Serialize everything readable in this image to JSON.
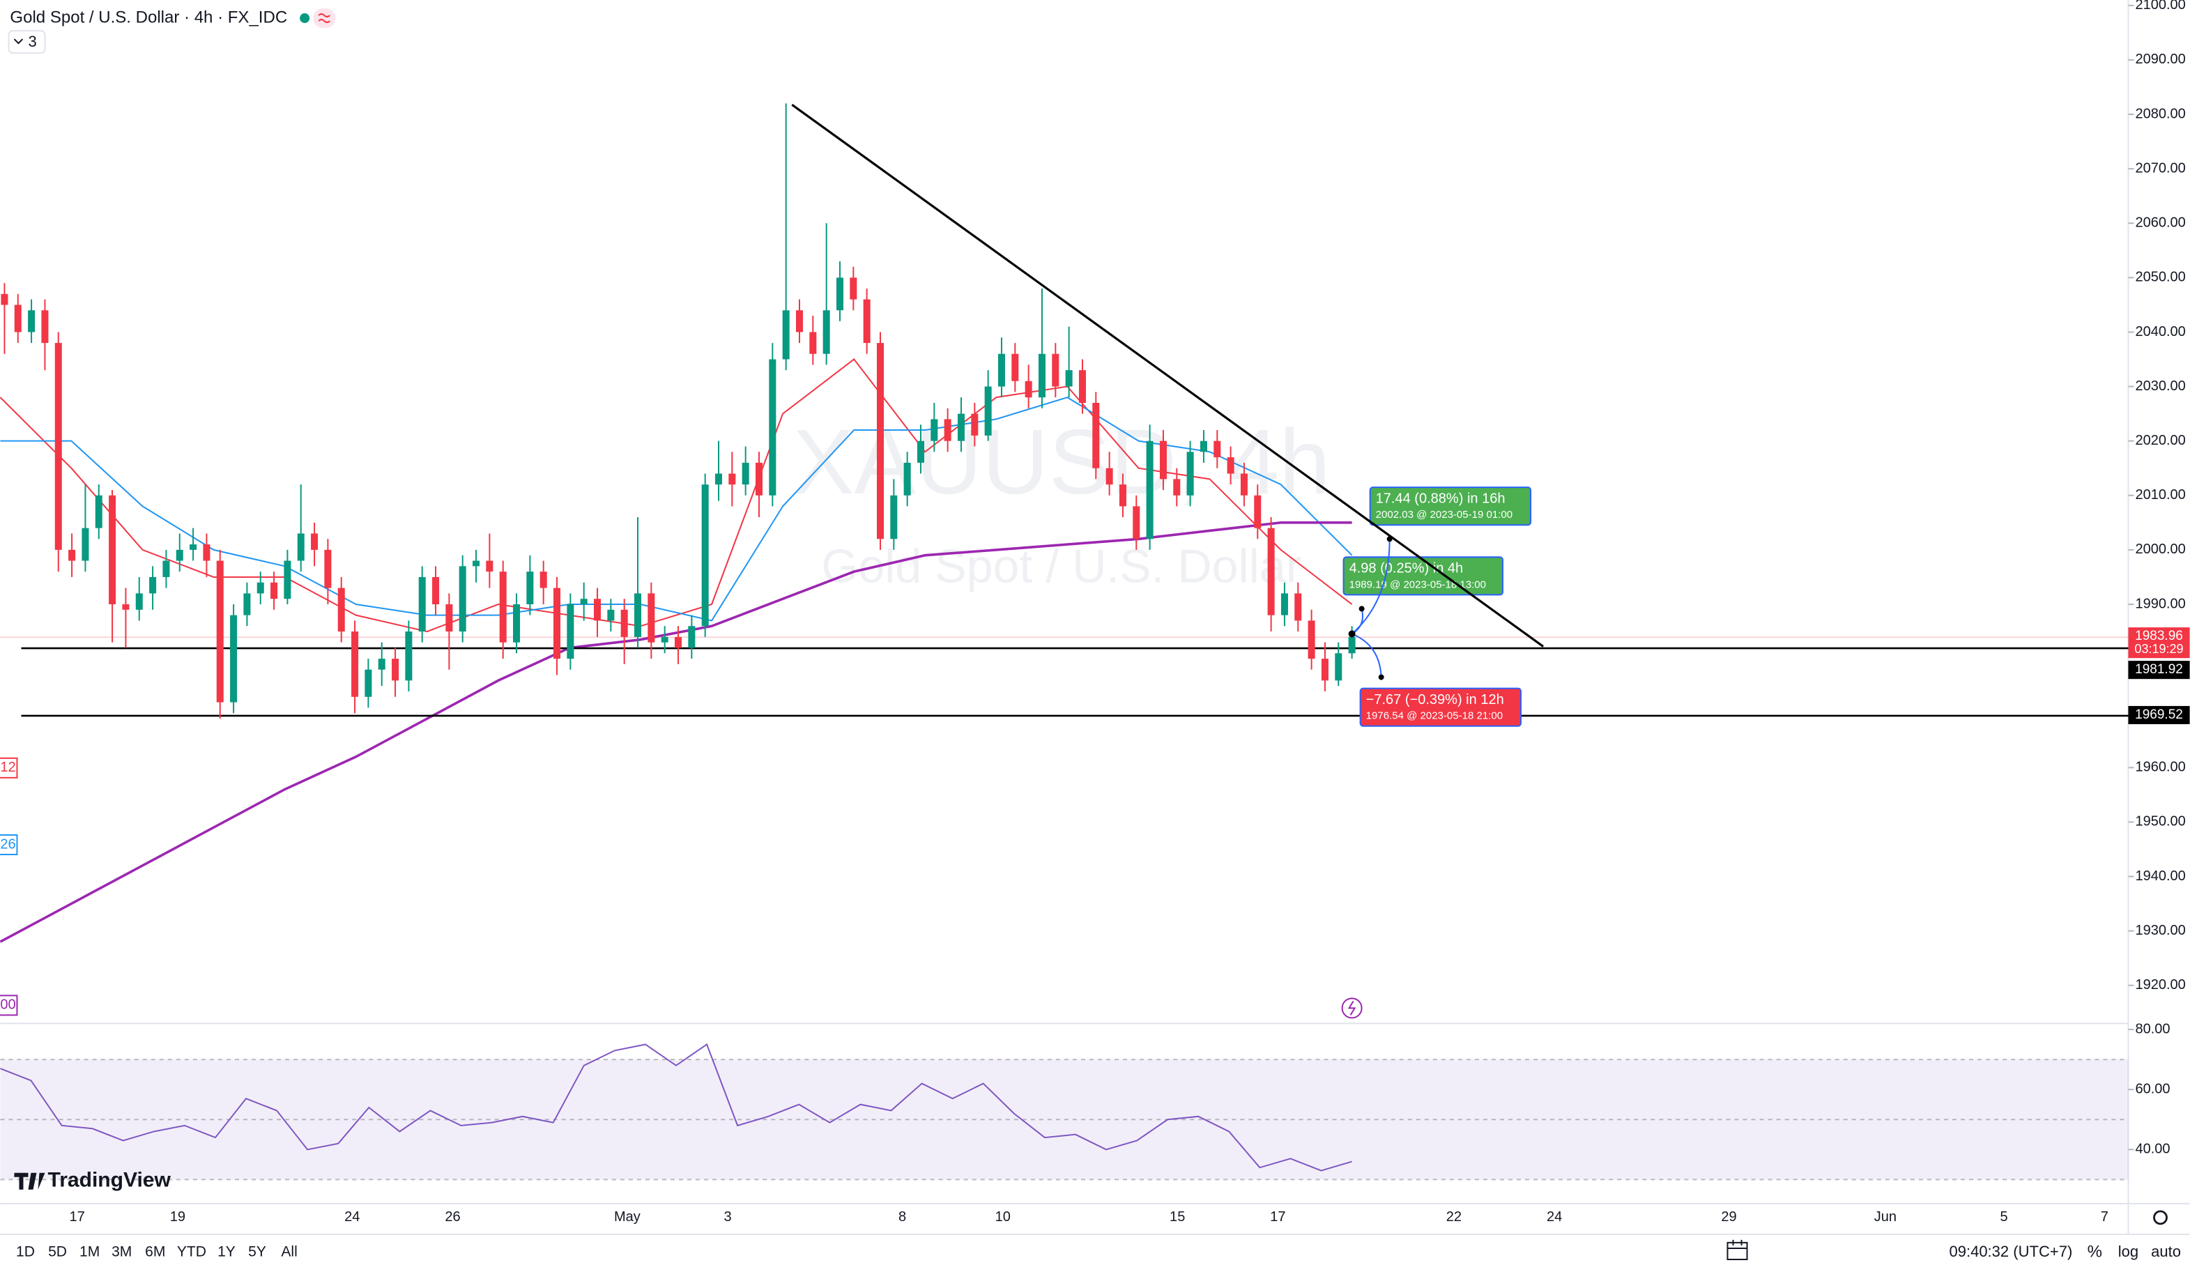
{
  "chart_data": {
    "type": "candlestick",
    "title": "Gold Spot / U.S. Dollar · 4h · FX_IDC",
    "indicators_badge": "3",
    "watermark_symbol": "XAUUSD, 4h",
    "watermark_name": "Gold Spot / U.S. Dollar",
    "colors": {
      "up": "#089981",
      "down": "#f23645"
    },
    "ohlc": [
      [
        2047,
        2049,
        2036,
        2045
      ],
      [
        2045,
        2047,
        2038,
        2040
      ],
      [
        2040,
        2046,
        2038,
        2044
      ],
      [
        2044,
        2046,
        2033,
        2038
      ],
      [
        2038,
        2040,
        1996,
        2000
      ],
      [
        2000,
        2003,
        1995,
        1998
      ],
      [
        1998,
        2012,
        1996,
        2004
      ],
      [
        2004,
        2012,
        2002,
        2010
      ],
      [
        2010,
        2011,
        1983,
        1990
      ],
      [
        1990,
        1993,
        1982,
        1989
      ],
      [
        1989,
        1995,
        1987,
        1992
      ],
      [
        1992,
        1997,
        1989,
        1995
      ],
      [
        1995,
        2000,
        1993,
        1998
      ],
      [
        1998,
        2003,
        1996,
        2000
      ],
      [
        2000,
        2004,
        1998,
        2001
      ],
      [
        2001,
        2003,
        1995,
        1998
      ],
      [
        1998,
        2000,
        1969,
        1972
      ],
      [
        1972,
        1990,
        1970,
        1988
      ],
      [
        1988,
        1994,
        1986,
        1992
      ],
      [
        1992,
        1996,
        1990,
        1994
      ],
      [
        1994,
        1996,
        1989,
        1991
      ],
      [
        1991,
        2000,
        1990,
        1998
      ],
      [
        1998,
        2012,
        1996,
        2003
      ],
      [
        2003,
        2005,
        1997,
        2000
      ],
      [
        2000,
        2002,
        1990,
        1993
      ],
      [
        1993,
        1995,
        1983,
        1985
      ],
      [
        1985,
        1987,
        1970,
        1973
      ],
      [
        1973,
        1980,
        1971,
        1978
      ],
      [
        1978,
        1983,
        1975,
        1980
      ],
      [
        1980,
        1982,
        1973,
        1976
      ],
      [
        1976,
        1987,
        1974,
        1985
      ],
      [
        1985,
        1997,
        1983,
        1995
      ],
      [
        1995,
        1997,
        1988,
        1990
      ],
      [
        1990,
        1992,
        1978,
        1985
      ],
      [
        1985,
        1999,
        1983,
        1997
      ],
      [
        1997,
        2000,
        1994,
        1998
      ],
      [
        1998,
        2003,
        1993,
        1996
      ],
      [
        1996,
        1998,
        1980,
        1983
      ],
      [
        1983,
        1992,
        1981,
        1990
      ],
      [
        1990,
        1999,
        1988,
        1996
      ],
      [
        1996,
        1998,
        1990,
        1993
      ],
      [
        1993,
        1995,
        1977,
        1980
      ],
      [
        1980,
        1992,
        1978,
        1990
      ],
      [
        1990,
        1994,
        1987,
        1991
      ],
      [
        1991,
        1993,
        1984,
        1987
      ],
      [
        1987,
        1991,
        1985,
        1989
      ],
      [
        1989,
        1991,
        1979,
        1984
      ],
      [
        1984,
        2006,
        1982,
        1992
      ],
      [
        1992,
        1994,
        1980,
        1983
      ],
      [
        1983,
        1986,
        1981,
        1984
      ],
      [
        1984,
        1986,
        1979,
        1982
      ],
      [
        1982,
        1988,
        1980,
        1986
      ],
      [
        1986,
        2014,
        1984,
        2012
      ],
      [
        2012,
        2020,
        2009,
        2014
      ],
      [
        2014,
        2018,
        2008,
        2012
      ],
      [
        2012,
        2019,
        2010,
        2016
      ],
      [
        2016,
        2018,
        2006,
        2010
      ],
      [
        2010,
        2038,
        2008,
        2035
      ],
      [
        2035,
        2082,
        2033,
        2044
      ],
      [
        2044,
        2046,
        2038,
        2040
      ],
      [
        2040,
        2043,
        2034,
        2036
      ],
      [
        2036,
        2060,
        2034,
        2044
      ],
      [
        2044,
        2053,
        2042,
        2050
      ],
      [
        2050,
        2052,
        2044,
        2046
      ],
      [
        2046,
        2048,
        2036,
        2038
      ],
      [
        2038,
        2040,
        2000,
        2002
      ],
      [
        2002,
        2013,
        2000,
        2010
      ],
      [
        2010,
        2018,
        2008,
        2016
      ],
      [
        2016,
        2023,
        2014,
        2020
      ],
      [
        2020,
        2027,
        2018,
        2024
      ],
      [
        2024,
        2026,
        2018,
        2020
      ],
      [
        2020,
        2028,
        2018,
        2025
      ],
      [
        2025,
        2027,
        2019,
        2021
      ],
      [
        2021,
        2033,
        2020,
        2030
      ],
      [
        2030,
        2039,
        2028,
        2036
      ],
      [
        2036,
        2038,
        2029,
        2031
      ],
      [
        2031,
        2034,
        2026,
        2028
      ],
      [
        2028,
        2048,
        2026,
        2036
      ],
      [
        2036,
        2038,
        2028,
        2030
      ],
      [
        2030,
        2041,
        2028,
        2033
      ],
      [
        2033,
        2035,
        2025,
        2027
      ],
      [
        2027,
        2029,
        2013,
        2015
      ],
      [
        2015,
        2018,
        2010,
        2012
      ],
      [
        2012,
        2014,
        2006,
        2008
      ],
      [
        2008,
        2010,
        2000,
        2002
      ],
      [
        2002,
        2023,
        2000,
        2020
      ],
      [
        2020,
        2022,
        2011,
        2013
      ],
      [
        2013,
        2015,
        2008,
        2010
      ],
      [
        2010,
        2020,
        2008,
        2018
      ],
      [
        2018,
        2022,
        2016,
        2020
      ],
      [
        2020,
        2022,
        2015,
        2017
      ],
      [
        2017,
        2019,
        2012,
        2014
      ],
      [
        2014,
        2016,
        2008,
        2010
      ],
      [
        2010,
        2012,
        2002,
        2004
      ],
      [
        2004,
        2006,
        1985,
        1988
      ],
      [
        1988,
        1994,
        1986,
        1992
      ],
      [
        1992,
        1994,
        1985,
        1987
      ],
      [
        1987,
        1989,
        1978,
        1980
      ],
      [
        1980,
        1983,
        1974,
        1976
      ],
      [
        1976,
        1983,
        1975,
        1981
      ],
      [
        1981,
        1986,
        1980,
        1984
      ]
    ],
    "lines": [
      {
        "color": "#f23645",
        "values": [
          2028,
          2015,
          2000,
          1995,
          1995,
          1988,
          1985,
          1990,
          1988,
          1986,
          1990,
          2025,
          2035,
          2018,
          2028,
          2030,
          2015,
          2013,
          2000,
          1990
        ]
      },
      {
        "color": "#2196f3",
        "values": [
          2020,
          2020,
          2008,
          2000,
          1997,
          1990,
          1988,
          1988,
          1990,
          1990,
          1987,
          2008,
          2022,
          2022,
          2024,
          2028,
          2020,
          2018,
          2012,
          1999
        ]
      },
      {
        "color": "#9c27b0",
        "values": [
          1928,
          1935,
          1942,
          1949,
          1956,
          1962,
          1969,
          1976,
          1982,
          1983.5,
          1986,
          1991,
          1996,
          1999,
          2000,
          2001,
          2002,
          2003.5,
          2005,
          2005
        ]
      }
    ],
    "line_labels": [
      {
        "text": "12",
        "color": "#f23645"
      },
      {
        "text": "26",
        "color": "#2196f3"
      },
      {
        "text": "00",
        "color": "#9c27b0"
      }
    ],
    "ylim": [
      1913,
      2101
    ],
    "yticks": [
      {
        "value": 2100,
        "label": "2100.00"
      },
      {
        "value": 2090,
        "label": "2090.00"
      },
      {
        "value": 2080,
        "label": "2080.00"
      },
      {
        "value": 2070,
        "label": "2070.00"
      },
      {
        "value": 2060,
        "label": "2060.00"
      },
      {
        "value": 2050,
        "label": "2050.00"
      },
      {
        "value": 2040,
        "label": "2040.00"
      },
      {
        "value": 2030,
        "label": "2030.00"
      },
      {
        "value": 2020,
        "label": "2020.00"
      },
      {
        "value": 2010,
        "label": "2010.00"
      },
      {
        "value": 2000,
        "label": "2000.00"
      },
      {
        "value": 1990,
        "label": "1990.00"
      },
      {
        "value": 1960,
        "label": "1960.00"
      },
      {
        "value": 1950,
        "label": "1950.00"
      },
      {
        "value": 1940,
        "label": "1940.00"
      },
      {
        "value": 1930,
        "label": "1930.00"
      },
      {
        "value": 1920,
        "label": "1920.00"
      }
    ],
    "xticks": [
      "17",
      "19",
      "24",
      "26",
      "May",
      "3",
      "8",
      "10",
      "15",
      "17",
      "22",
      "24",
      "29",
      "Jun",
      "5",
      "7"
    ],
    "price_tags": [
      {
        "value": 1983.96,
        "label": "1983.96",
        "countdown": "03:19:29",
        "color": "#f23645"
      },
      {
        "value": 1981.92,
        "label": "1981.92",
        "color": "#000000"
      },
      {
        "value": 1969.52,
        "label": "1969.52",
        "color": "#000000"
      }
    ],
    "forecasts": [
      {
        "change": "17.44 (0.88%) in 16h",
        "target": "2002.03 @ 2023-05-19  01:00",
        "color": "#4caf50"
      },
      {
        "change": "4.98 (0.25%) in 4h",
        "target": "1989.19 @ 2023-05-18  13:00",
        "color": "#4caf50"
      },
      {
        "change": "−7.67 (−0.39%) in 12h",
        "target": "1976.54 @ 2023-05-18  21:00",
        "color": "#f23645"
      }
    ],
    "rsi": {
      "color": "#7e57c2",
      "values": [
        67,
        63,
        48,
        47,
        43,
        46,
        48,
        44,
        57,
        53,
        40,
        42,
        54,
        46,
        53,
        48,
        49,
        51,
        49,
        68,
        73,
        75,
        68,
        75,
        48,
        51,
        55,
        49,
        55,
        53,
        62,
        57,
        62,
        52,
        44,
        45,
        40,
        43,
        50,
        51,
        46,
        34,
        37,
        33,
        36
      ],
      "ylim": [
        22,
        82
      ],
      "yticks": [
        {
          "value": 80,
          "label": "80.00"
        },
        {
          "value": 60,
          "label": "60.00"
        },
        {
          "value": 40,
          "label": "40.00"
        }
      ],
      "levels": [
        70,
        50,
        30
      ]
    }
  },
  "toolbar": {
    "ranges": [
      "1D",
      "5D",
      "1M",
      "3M",
      "6M",
      "YTD",
      "1Y",
      "5Y",
      "All"
    ],
    "clock": "09:40:32 (UTC+7)",
    "percent": "%",
    "log": "log",
    "auto": "auto"
  },
  "branding": "TradingView"
}
